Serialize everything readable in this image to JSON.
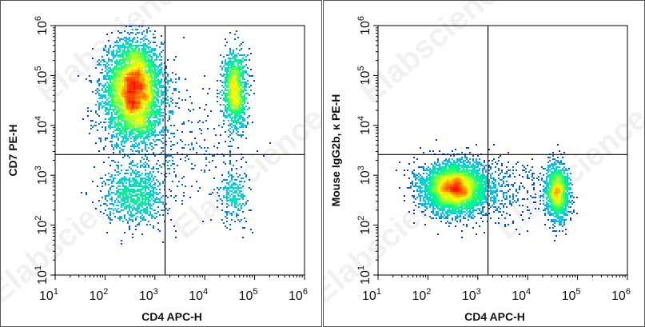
{
  "watermark": "Elabscience",
  "chart_data": [
    {
      "type": "scatter",
      "subtype": "flow-cytometry-density-dot-plot",
      "xlabel": "CD4 APC-H",
      "ylabel": "CD7 PE-H",
      "x_scale": "log",
      "y_scale": "log",
      "xlim": [
        10,
        1000000
      ],
      "ylim": [
        10,
        1000000
      ],
      "x_ticks": [
        {
          "base": "10",
          "exp": "1"
        },
        {
          "base": "10",
          "exp": "2"
        },
        {
          "base": "10",
          "exp": "3"
        },
        {
          "base": "10",
          "exp": "4"
        },
        {
          "base": "10",
          "exp": "5"
        },
        {
          "base": "10",
          "exp": "6"
        }
      ],
      "y_ticks": [
        {
          "base": "10",
          "exp": "1"
        },
        {
          "base": "10",
          "exp": "2"
        },
        {
          "base": "10",
          "exp": "3"
        },
        {
          "base": "10",
          "exp": "4"
        },
        {
          "base": "10",
          "exp": "5"
        },
        {
          "base": "10",
          "exp": "6"
        }
      ],
      "quadrant_gate": {
        "x": 1600,
        "y": 2600
      },
      "populations": [
        {
          "center": [
            380,
            60000
          ],
          "spread_decades": [
            0.28,
            0.45
          ],
          "count": 4200
        },
        {
          "center": [
            400,
            15000
          ],
          "spread_decades": [
            0.3,
            0.35
          ],
          "count": 900
        },
        {
          "center": [
            40000,
            50000
          ],
          "spread_decades": [
            0.12,
            0.4
          ],
          "count": 1200
        },
        {
          "center": [
            400,
            400
          ],
          "spread_decades": [
            0.3,
            0.3
          ],
          "count": 900
        },
        {
          "center": [
            40000,
            400
          ],
          "spread_decades": [
            0.15,
            0.3
          ],
          "count": 250
        },
        {
          "center": [
            3000,
            4000
          ],
          "spread_decades": [
            0.6,
            0.6
          ],
          "count": 300
        }
      ],
      "grid": false,
      "colormap": [
        "#0000ff",
        "#00c0ff",
        "#00ff80",
        "#ffff00",
        "#ff0000"
      ]
    },
    {
      "type": "scatter",
      "subtype": "flow-cytometry-density-dot-plot",
      "xlabel": "CD4 APC-H",
      "ylabel": "Mouse IgG2b, κ PE-H",
      "x_scale": "log",
      "y_scale": "log",
      "xlim": [
        10,
        1000000
      ],
      "ylim": [
        10,
        1000000
      ],
      "x_ticks": [
        {
          "base": "10",
          "exp": "1"
        },
        {
          "base": "10",
          "exp": "2"
        },
        {
          "base": "10",
          "exp": "3"
        },
        {
          "base": "10",
          "exp": "4"
        },
        {
          "base": "10",
          "exp": "5"
        },
        {
          "base": "10",
          "exp": "6"
        }
      ],
      "y_ticks": [
        {
          "base": "10",
          "exp": "1"
        },
        {
          "base": "10",
          "exp": "2"
        },
        {
          "base": "10",
          "exp": "3"
        },
        {
          "base": "10",
          "exp": "4"
        },
        {
          "base": "10",
          "exp": "5"
        },
        {
          "base": "10",
          "exp": "6"
        }
      ],
      "quadrant_gate": {
        "x": 1600,
        "y": 2600
      },
      "populations": [
        {
          "center": [
            350,
            550
          ],
          "spread_decades": [
            0.32,
            0.25
          ],
          "count": 4500
        },
        {
          "center": [
            40000,
            450
          ],
          "spread_decades": [
            0.12,
            0.28
          ],
          "count": 1500
        },
        {
          "center": [
            3000,
            500
          ],
          "spread_decades": [
            0.5,
            0.3
          ],
          "count": 350
        }
      ],
      "grid": false,
      "colormap": [
        "#0000ff",
        "#00c0ff",
        "#00ff80",
        "#ffff00",
        "#ff0000"
      ]
    }
  ]
}
